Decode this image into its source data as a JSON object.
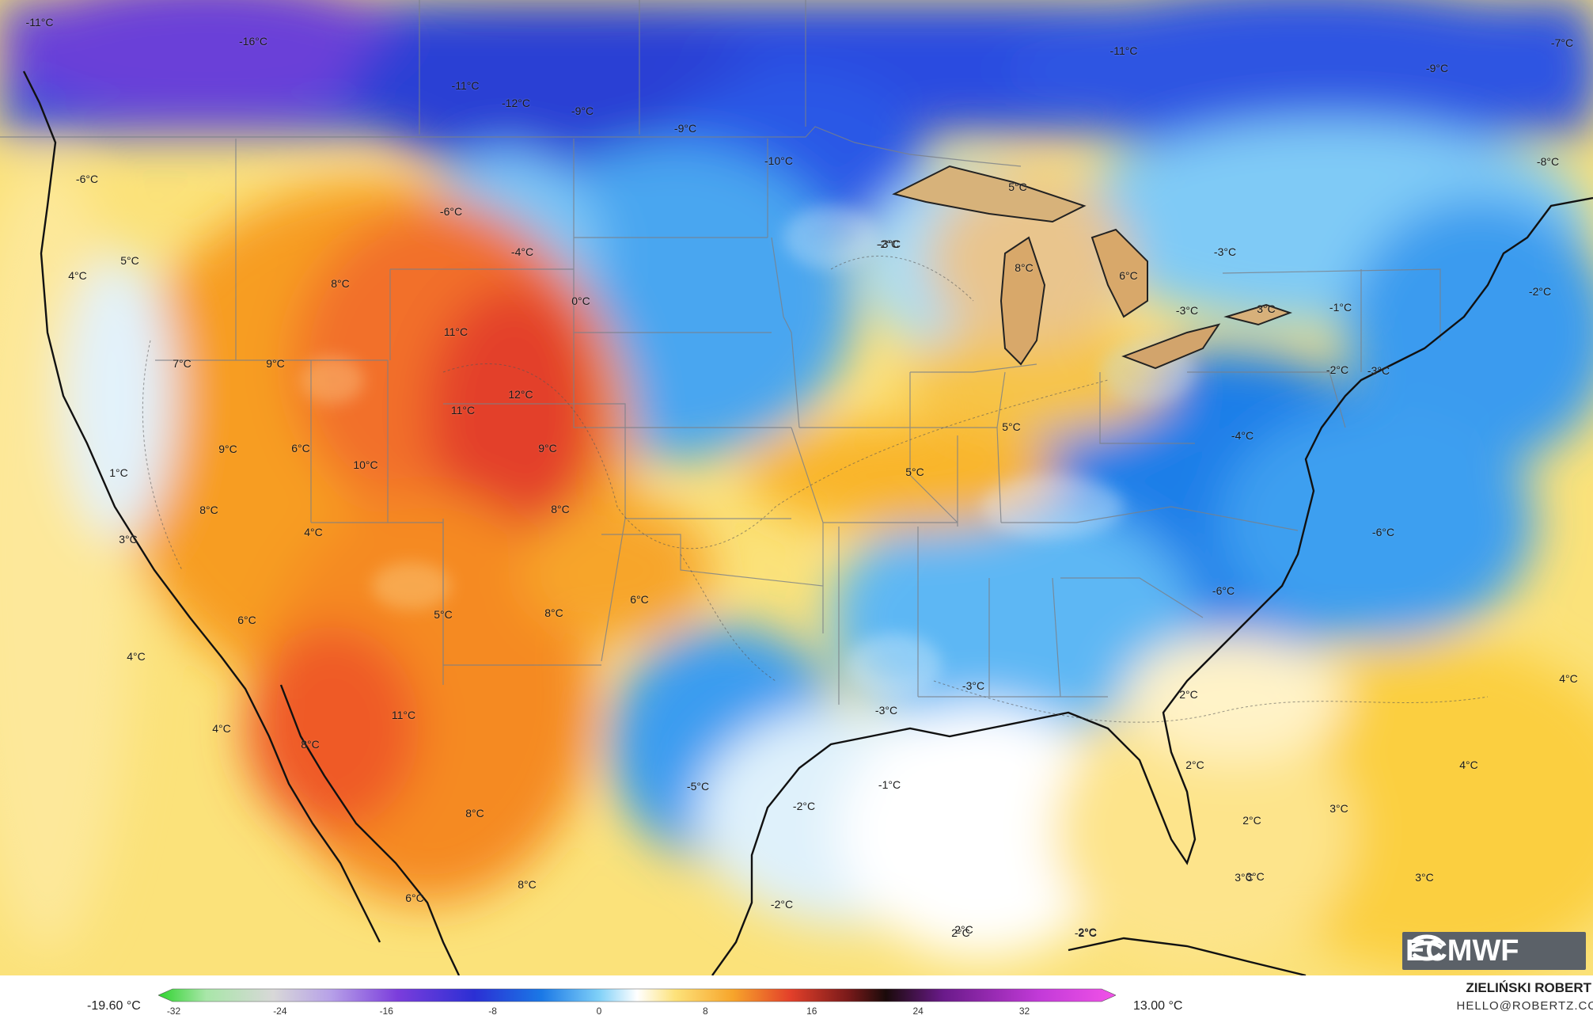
{
  "colorbar": {
    "min_value": "-19.60 °C",
    "max_value": "13.00 °C",
    "ticks": [
      "-32",
      "-24",
      "-16",
      "-8",
      "0",
      "8",
      "16",
      "24",
      "32"
    ]
  },
  "credit": {
    "name": "ZIELIŃSKI ROBERT",
    "email": "HELLO@ROBERTZ.CO"
  },
  "logo_text": "ECMWF",
  "labels": [
    {
      "text": "-11°C"
    },
    {
      "text": "-16°C"
    },
    {
      "text": "-11°C"
    },
    {
      "text": "-12°C"
    },
    {
      "text": "-9°C"
    },
    {
      "text": "-9°C"
    },
    {
      "text": "-10°C"
    },
    {
      "text": "-11°C"
    },
    {
      "text": "-7°C"
    },
    {
      "text": "-9°C"
    },
    {
      "text": "-8°C"
    },
    {
      "text": "-6°C"
    },
    {
      "text": "-6°C"
    },
    {
      "text": "-4°C"
    },
    {
      "text": "0°C"
    },
    {
      "text": "-2°C"
    },
    {
      "text": "5°C"
    },
    {
      "text": "8°C"
    },
    {
      "text": "6°C"
    },
    {
      "text": "-3°C"
    },
    {
      "text": "-3°C"
    },
    {
      "text": "3°C"
    },
    {
      "text": "-1°C"
    },
    {
      "text": "-2°C"
    },
    {
      "text": "4°C"
    },
    {
      "text": "5°C"
    },
    {
      "text": "8°C"
    },
    {
      "text": "11°C"
    },
    {
      "text": "7°C"
    },
    {
      "text": "9°C"
    },
    {
      "text": "9°C"
    },
    {
      "text": "11°C"
    },
    {
      "text": "12°C"
    },
    {
      "text": "9°C"
    },
    {
      "text": "6°C"
    },
    {
      "text": "10°C"
    },
    {
      "text": "1°C"
    },
    {
      "text": "8°C"
    },
    {
      "text": "8°C"
    },
    {
      "text": "3°C"
    },
    {
      "text": "4°C"
    },
    {
      "text": "6°C"
    },
    {
      "text": "5°C"
    },
    {
      "text": "8°C"
    },
    {
      "text": "6°C"
    },
    {
      "text": "4°C"
    },
    {
      "text": "4°C"
    },
    {
      "text": "11°C"
    },
    {
      "text": "8°C"
    },
    {
      "text": "8°C"
    },
    {
      "text": "8°C"
    },
    {
      "text": "6°C"
    },
    {
      "text": "5°C"
    },
    {
      "text": "5°C"
    },
    {
      "text": "-3°C"
    },
    {
      "text": "-2°C"
    },
    {
      "text": "-3°C"
    },
    {
      "text": "-4°C"
    },
    {
      "text": "-6°C"
    },
    {
      "text": "-6°C"
    },
    {
      "text": "-3°C"
    },
    {
      "text": "-3°C"
    },
    {
      "text": "-5°C"
    },
    {
      "text": "-2°C"
    },
    {
      "text": "-1°C"
    },
    {
      "text": "-2°C"
    },
    {
      "text": "2°C"
    },
    {
      "text": "2°C"
    },
    {
      "text": "2°C"
    },
    {
      "text": "2°C"
    },
    {
      "text": "3°C"
    },
    {
      "text": "3°C"
    },
    {
      "text": "2°C"
    },
    {
      "text": "3°C"
    },
    {
      "text": "4°C"
    },
    {
      "text": "4°C"
    },
    {
      "text": "2°C"
    },
    {
      "text": "3°C"
    },
    {
      "text": "-2°C"
    }
  ]
}
